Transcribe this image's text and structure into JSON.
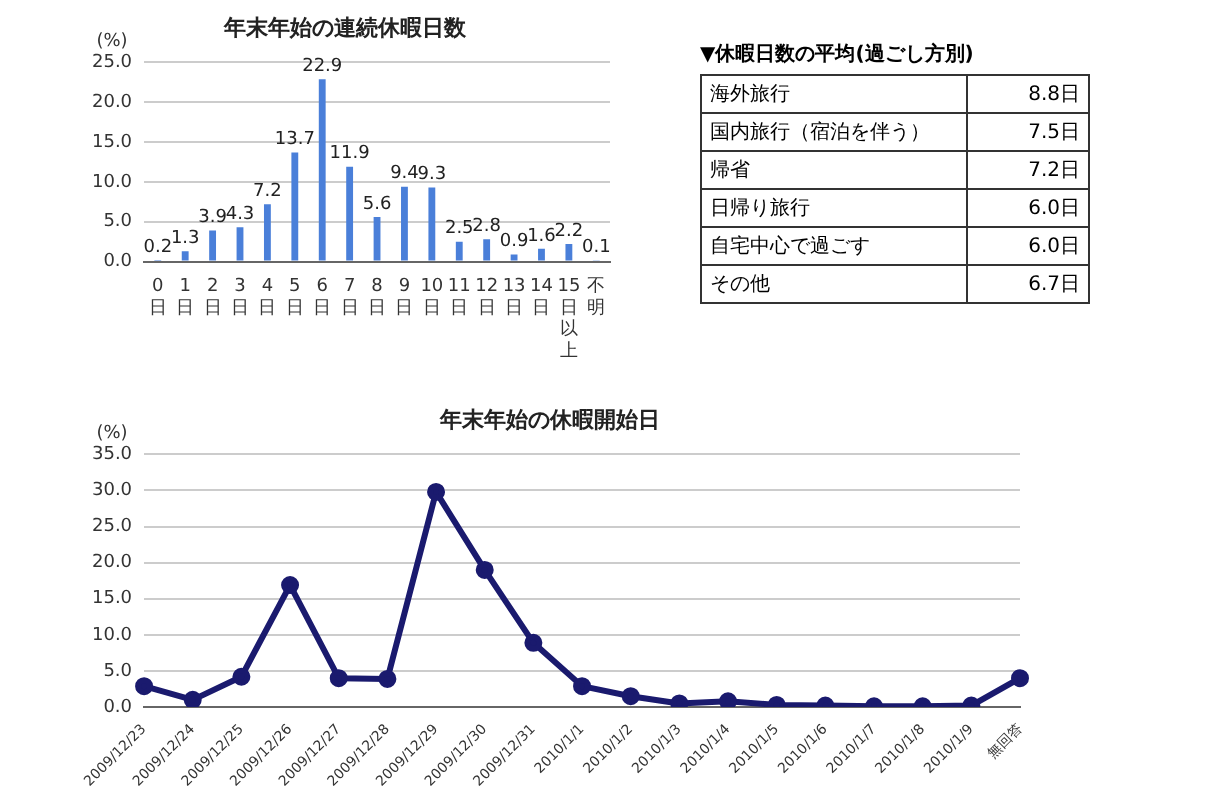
{
  "chart_data": [
    {
      "type": "bar",
      "title": "年末年始の連続休暇日数",
      "ylabel": "(%)",
      "categories": [
        "0日",
        "1日",
        "2日",
        "3日",
        "4日",
        "5日",
        "6日",
        "7日",
        "8日",
        "9日",
        "10日",
        "11日",
        "12日",
        "13日",
        "14日",
        "15日以上",
        "不明"
      ],
      "values": [
        0.2,
        1.3,
        3.9,
        4.3,
        7.2,
        13.7,
        22.9,
        11.9,
        5.6,
        9.4,
        9.3,
        2.5,
        2.8,
        0.9,
        1.6,
        2.2,
        0.1
      ],
      "color": "#4a7fd9",
      "data_labels": true,
      "grid": "y",
      "ylim": [
        0,
        25
      ],
      "yticks": [
        {
          "value": 0,
          "label": "0.0"
        },
        {
          "value": 5,
          "label": "5.0"
        },
        {
          "value": 10,
          "label": "10.0"
        },
        {
          "value": 15,
          "label": "15.0"
        },
        {
          "value": 20,
          "label": "20.0"
        },
        {
          "value": 25,
          "label": "25.0"
        }
      ]
    },
    {
      "type": "other",
      "title": "▼休暇日数の平均(過ごし方別)",
      "annotations": [
        "海外旅行",
        "8.8日",
        "国内旅行（宿泊を伴う）",
        "7.5日",
        "帰省",
        "7.2日",
        "日帰り旅行",
        "6.0日",
        "自宅中心で過ごす",
        "6.0日",
        "その他",
        "6.7日"
      ]
    },
    {
      "type": "line",
      "title": "年末年始の休暇開始日",
      "ylabel": "(%)",
      "categories": [
        "2009/12/23",
        "2009/12/24",
        "2009/12/25",
        "2009/12/26",
        "2009/12/27",
        "2009/12/28",
        "2009/12/29",
        "2009/12/30",
        "2009/12/31",
        "2010/1/1",
        "2010/1/2",
        "2010/1/3",
        "2010/1/4",
        "2010/1/5",
        "2010/1/6",
        "2010/1/7",
        "2010/1/8",
        "2010/1/9",
        "無回答"
      ],
      "values": [
        2.9,
        1.0,
        4.2,
        16.9,
        4.0,
        3.9,
        29.8,
        19.0,
        8.9,
        2.9,
        1.5,
        0.5,
        0.8,
        0.3,
        0.2,
        0.1,
        0.1,
        0.2,
        4.0
      ],
      "color": "#1a1a6e",
      "marker": "circle",
      "line_style": "solid",
      "grid": "y",
      "ylim": [
        0,
        35
      ],
      "yticks": [
        {
          "value": 0,
          "label": "0.0"
        },
        {
          "value": 5,
          "label": "5.0"
        },
        {
          "value": 10,
          "label": "10.0"
        },
        {
          "value": 15,
          "label": "15.0"
        },
        {
          "value": 20,
          "label": "20.0"
        },
        {
          "value": 25,
          "label": "25.0"
        },
        {
          "value": 30,
          "label": "30.0"
        },
        {
          "value": 35,
          "label": "35.0"
        }
      ]
    }
  ]
}
